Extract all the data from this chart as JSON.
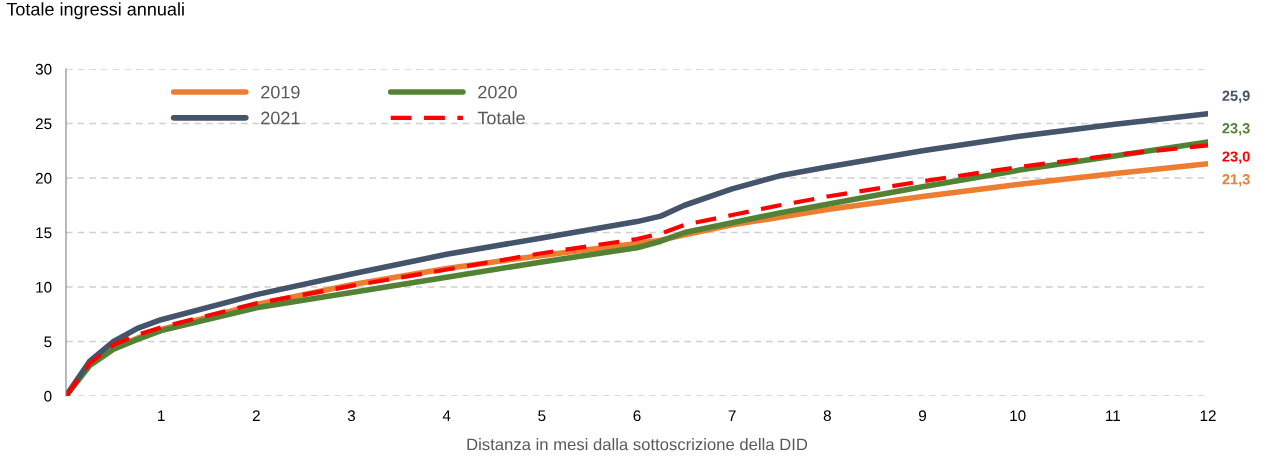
{
  "chart_data": {
    "type": "line",
    "title": "Totale ingressi annuali",
    "xlabel": "Distanza in mesi dalla sottoscrizione della DID",
    "x": [
      0,
      0.25,
      0.5,
      0.75,
      1,
      2,
      3,
      4,
      5,
      6,
      6.25,
      6.5,
      7,
      7.5,
      8,
      9,
      10,
      11,
      12
    ],
    "xlim": [
      0,
      12
    ],
    "xticks": [
      1,
      2,
      3,
      4,
      5,
      6,
      7,
      8,
      9,
      10,
      11,
      12
    ],
    "ylim": [
      0,
      30
    ],
    "yticks": [
      0,
      5,
      10,
      15,
      20,
      25,
      30
    ],
    "grid": "y",
    "legend": "top left",
    "line_style": "solid",
    "marker": "none",
    "series": [
      {
        "name": "2019",
        "color": "#ed7d31",
        "values": [
          null,
          null,
          4.4,
          5.3,
          6.1,
          8.4,
          10.2,
          11.7,
          12.9,
          14,
          14.3,
          14.8,
          15.7,
          16.4,
          17.1,
          18.3,
          19.4,
          20.4,
          21.3
        ],
        "value_labels": [
          null,
          null,
          null,
          null,
          null,
          null,
          null,
          null,
          null,
          null,
          null,
          null,
          null,
          null,
          null,
          null,
          null,
          null,
          "21,3"
        ]
      },
      {
        "name": "2020",
        "color": "#548235",
        "values": [
          0,
          2.8,
          4.3,
          5.2,
          6,
          8.1,
          9.5,
          10.9,
          12.3,
          13.6,
          14.2,
          15,
          15.9,
          16.8,
          17.6,
          19.2,
          20.7,
          22,
          23.3
        ],
        "value_labels": [
          null,
          null,
          null,
          null,
          null,
          null,
          null,
          null,
          null,
          null,
          null,
          null,
          null,
          null,
          null,
          null,
          null,
          null,
          "23,3"
        ]
      },
      {
        "name": "2021",
        "color": "#44546a",
        "values": [
          0,
          3.2,
          5,
          6.2,
          7,
          9.3,
          11.2,
          13,
          14.5,
          16,
          16.5,
          17.5,
          19,
          20.2,
          21,
          22.5,
          23.8,
          24.9,
          25.9
        ],
        "value_labels": [
          null,
          null,
          null,
          null,
          null,
          null,
          null,
          null,
          null,
          null,
          null,
          null,
          null,
          null,
          null,
          null,
          null,
          null,
          "25,9"
        ]
      },
      {
        "name": "Totale",
        "color": "#ff0000",
        "line_style": "dashed",
        "values": [
          0,
          3,
          4.7,
          5.6,
          6.3,
          8.5,
          10.1,
          11.6,
          13.1,
          14.4,
          14.9,
          15.7,
          16.6,
          17.5,
          18.3,
          19.7,
          21,
          22.1,
          23
        ],
        "value_labels": [
          null,
          null,
          null,
          null,
          null,
          null,
          null,
          null,
          null,
          null,
          null,
          null,
          null,
          null,
          null,
          null,
          null,
          null,
          "23,0"
        ]
      }
    ]
  }
}
